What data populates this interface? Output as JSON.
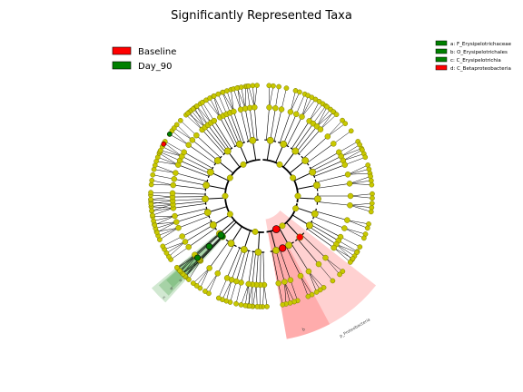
{
  "title": "Significantly Represented Taxa",
  "colors": {
    "baseline": "#ff0000",
    "day90": "#008000",
    "node_default": "#c8c800",
    "node_edge": "#7a7a00",
    "highlight_red": "#ff6666",
    "highlight_green": "#66b266",
    "line": "#000000"
  },
  "legend_groups": [
    {
      "label": "Baseline",
      "color": "#ff0000"
    },
    {
      "label": "Day_90",
      "color": "#008000"
    }
  ],
  "legend_taxa": [
    {
      "label": "a: F_Erysipelotrichaceae",
      "color": "#008000"
    },
    {
      "label": "b: O_Erysipelotrichales",
      "color": "#008000"
    },
    {
      "label": "c: C_Erysipelotrichia",
      "color": "#008000"
    },
    {
      "label": "d: C_Betaproteobacteria",
      "color": "#ff0000"
    }
  ],
  "clade_labels": {
    "d_inner": "d",
    "d_outer": "p_Proteobacteria",
    "c": "c",
    "b": "b",
    "a": "a"
  }
}
